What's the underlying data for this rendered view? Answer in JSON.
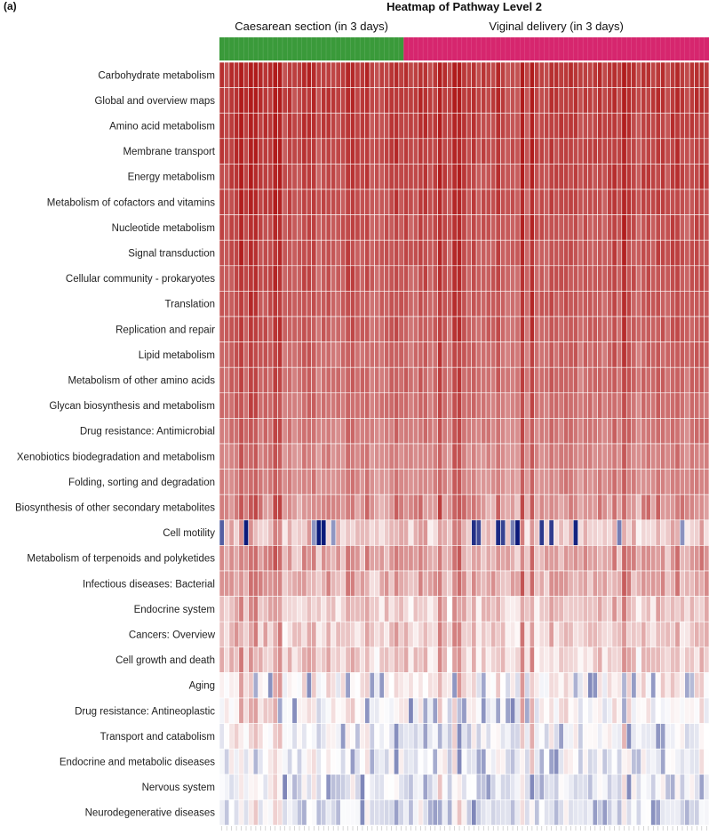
{
  "panel_label": "(a)",
  "chart_data": {
    "type": "heatmap",
    "title": "Heatmap of Pathway Level 2",
    "groups": [
      {
        "name": "Caesarean section (in 3 days)",
        "color": "#3a9a3a",
        "n_samples": 38
      },
      {
        "name": "Viginal delivery (in 3 days)",
        "color": "#d6266e",
        "n_samples": 63
      }
    ],
    "color_scale": {
      "low": "#0b1a7a",
      "mid": "#ffffff",
      "high": "#b01c1c",
      "min": -3,
      "max": 3
    },
    "rows": [
      {
        "label": "Carbohydrate metabolism",
        "level": 2.6
      },
      {
        "label": "Global and overview maps",
        "level": 2.55
      },
      {
        "label": "Amino acid metabolism",
        "level": 2.5
      },
      {
        "label": "Membrane transport",
        "level": 2.45
      },
      {
        "label": "Energy metabolism",
        "level": 2.4
      },
      {
        "label": "Metabolism of cofactors and vitamins",
        "level": 2.35
      },
      {
        "label": "Nucleotide metabolism",
        "level": 2.3
      },
      {
        "label": "Signal transduction",
        "level": 2.25
      },
      {
        "label": "Cellular community - prokaryotes",
        "level": 2.2
      },
      {
        "label": "Translation",
        "level": 2.15
      },
      {
        "label": "Replication and repair",
        "level": 2.1
      },
      {
        "label": "Lipid metabolism",
        "level": 2.0
      },
      {
        "label": "Metabolism of other amino acids",
        "level": 1.95
      },
      {
        "label": "Glycan biosynthesis and metabolism",
        "level": 1.85
      },
      {
        "label": "Drug resistance: Antimicrobial",
        "level": 1.75
      },
      {
        "label": "Xenobiotics biodegradation and metabolism",
        "level": 1.6
      },
      {
        "label": "Folding, sorting and degradation",
        "level": 1.55
      },
      {
        "label": "Biosynthesis of other secondary metabolites",
        "level": 1.45
      },
      {
        "label": "Cell motility",
        "level": 0.6
      },
      {
        "label": "Metabolism of terpenoids and polyketides",
        "level": 1.2
      },
      {
        "label": "Infectious diseases: Bacterial",
        "level": 1.1
      },
      {
        "label": "Endocrine system",
        "level": 0.7
      },
      {
        "label": "Cancers: Overview",
        "level": 0.65
      },
      {
        "label": "Cell growth and death",
        "level": 0.6
      },
      {
        "label": "Aging",
        "level": 0.2
      },
      {
        "label": "Drug resistance: Antineoplastic",
        "level": 0.1
      },
      {
        "label": "Transport and catabolism",
        "level": -0.1
      },
      {
        "label": "Endocrine and metabolic diseases",
        "level": -0.2
      },
      {
        "label": "Nervous system",
        "level": -0.3
      },
      {
        "label": "Neurodegenerative diseases",
        "level": -0.35
      }
    ],
    "strong_columns": [
      4,
      6,
      7,
      11,
      12,
      45,
      48,
      49,
      62,
      64,
      83
    ],
    "cell_motility_blue_columns": [
      0,
      5,
      19,
      20,
      21,
      23,
      52,
      53,
      57,
      58,
      60,
      61,
      66,
      68,
      73,
      82,
      95
    ]
  }
}
